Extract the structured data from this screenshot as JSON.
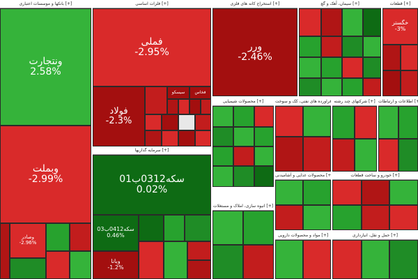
{
  "colors": {
    "positive_light": "#35b33a",
    "positive_dark": "#0e6b14",
    "negative_light": "#d92a2a",
    "negative_dark": "#a30f0f",
    "neutral": "#e8e8e8"
  },
  "chart_data": {
    "type": "treemap",
    "sectors": [
      {
        "name": "بانکها و موسسات اعتباری [+]",
        "tiles": [
          {
            "name": "ونتجارت",
            "change": 2.58
          },
          {
            "name": "وبملت",
            "change": -2.99
          },
          {
            "name": "وصادر",
            "change": -2.96
          }
        ]
      },
      {
        "name": "فلزات اساسی [+]",
        "tiles": [
          {
            "name": "فملی",
            "change": -2.95
          },
          {
            "name": "فولاد",
            "change": -2.3
          },
          {
            "name": "سیسکو",
            "change": null
          },
          {
            "name": "فخاس",
            "change": null
          }
        ]
      },
      {
        "name": "استخراج کانه های فلزی [+]",
        "tiles": [
          {
            "name": "ورر",
            "change": -2.46
          }
        ]
      },
      {
        "name": "سرمایه گذاریها [+]",
        "tiles": [
          {
            "name": "سکه0312ب01",
            "change": 0.02
          },
          {
            "name": "سکه0412ب03",
            "change": 0.46
          },
          {
            "name": "وبانا",
            "change": -1.2
          }
        ]
      },
      {
        "name": "سیمان، آهک و گچ [+]",
        "tiles": []
      },
      {
        "name": "قطعات [+]",
        "tiles": [
          {
            "name": "خگستر",
            "change": -3
          }
        ]
      },
      {
        "name": "محصولات شیمیایی [+]",
        "tiles": []
      },
      {
        "name": "فراورده های نفتی، کک و سوخت [+]",
        "tiles": []
      },
      {
        "name": "شرکتهای چند رشته [+]",
        "tiles": []
      },
      {
        "name": "اطلاعات و ارتباطات [+]",
        "tiles": []
      },
      {
        "name": "خودرو و ساخت قطعات [+]",
        "tiles": []
      },
      {
        "name": "محصولات غذایی و آشامیدنی [+]",
        "tiles": []
      },
      {
        "name": "حمل و نقل، انبارداری [+]",
        "tiles": []
      },
      {
        "name": "انبوه سازی، املاک و مستغلات [+]",
        "tiles": []
      },
      {
        "name": "مواد و محصولات دارویی [+]",
        "tiles": []
      }
    ]
  }
}
